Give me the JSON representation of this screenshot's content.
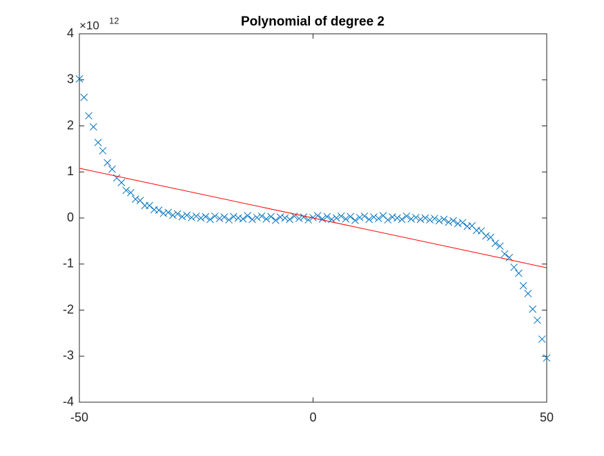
{
  "chart_data": {
    "type": "scatter",
    "title": "Polynomial of degree 2",
    "y_exponent": {
      "base": "×10",
      "power": "12"
    },
    "xlim": [
      -50,
      50
    ],
    "xticks": [
      -50,
      0,
      50
    ],
    "ylim": [
      -4,
      4
    ],
    "yticks": [
      -4,
      -3,
      -2,
      -1,
      0,
      1,
      2,
      3,
      4
    ],
    "grid": false,
    "series": [
      {
        "type": "scatter",
        "color": "#0072bd",
        "x": [
          -50,
          -49,
          -48,
          -47,
          -46,
          -45,
          -44,
          -43,
          -42,
          -41,
          -40,
          -39,
          -38,
          -37,
          -36,
          -35,
          -34,
          -33,
          -32,
          -31,
          -30,
          -29,
          -28,
          -27,
          -26,
          -25,
          -24,
          -23,
          -22,
          -21,
          -20,
          -19,
          -18,
          -17,
          -16,
          -15,
          -14,
          -13,
          -12,
          -11,
          -10,
          -9,
          -8,
          -7,
          -6,
          -5,
          -4,
          -3,
          -2,
          -1,
          0,
          1,
          2,
          3,
          4,
          5,
          6,
          7,
          8,
          9,
          10,
          11,
          12,
          13,
          14,
          15,
          16,
          17,
          18,
          19,
          20,
          21,
          22,
          23,
          24,
          25,
          26,
          27,
          28,
          29,
          30,
          31,
          32,
          33,
          34,
          35,
          36,
          37,
          38,
          39,
          40,
          41,
          42,
          43,
          44,
          45,
          46,
          47,
          48,
          49,
          50
        ],
        "values": [
          3.02,
          2.62,
          2.22,
          1.98,
          1.64,
          1.46,
          1.2,
          1.06,
          0.87,
          0.77,
          0.6,
          0.55,
          0.41,
          0.38,
          0.27,
          0.27,
          0.18,
          0.17,
          0.1,
          0.12,
          0.06,
          0.09,
          0.03,
          0.06,
          0.01,
          0.04,
          0.0,
          0.03,
          -0.03,
          0.04,
          -0.01,
          0.02,
          -0.04,
          0.03,
          0.0,
          -0.02,
          0.05,
          -0.03,
          0.01,
          0.04,
          -0.02,
          0.03,
          -0.05,
          0.02,
          0.0,
          -0.03,
          0.04,
          -0.01,
          0.02,
          -0.04,
          0.01,
          0.05,
          -0.02,
          0.03,
          -0.03,
          0.0,
          0.04,
          -0.02,
          0.03,
          -0.05,
          0.01,
          0.04,
          -0.03,
          0.02,
          -0.01,
          0.05,
          -0.04,
          0.02,
          0.0,
          -0.03,
          0.04,
          -0.02,
          0.01,
          -0.03,
          0.0,
          -0.04,
          -0.01,
          -0.06,
          -0.03,
          -0.09,
          -0.06,
          -0.12,
          -0.1,
          -0.18,
          -0.17,
          -0.27,
          -0.28,
          -0.39,
          -0.42,
          -0.55,
          -0.61,
          -0.78,
          -0.86,
          -1.07,
          -1.2,
          -1.47,
          -1.64,
          -1.98,
          -2.22,
          -2.63,
          -3.04
        ]
      },
      {
        "type": "line",
        "color": "#ff0000",
        "x": [
          -50,
          50
        ],
        "values": [
          1.08,
          -1.08
        ]
      }
    ]
  }
}
